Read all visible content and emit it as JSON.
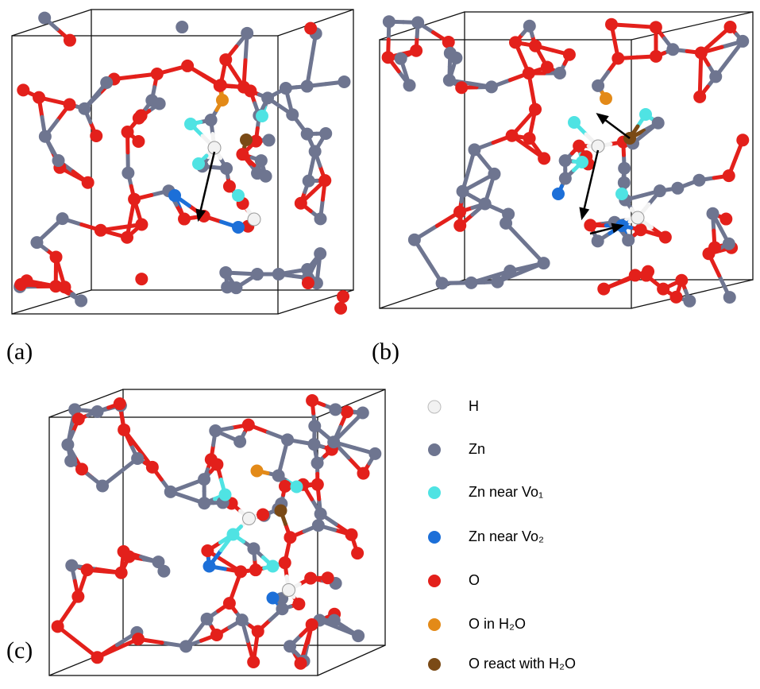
{
  "panels": [
    {
      "label": "(a)"
    },
    {
      "label": "(b)"
    },
    {
      "label": "(c)"
    }
  ],
  "legend": [
    {
      "label": "H",
      "color": "#f2f2f2"
    },
    {
      "label": "Zn",
      "color": "#6e7590"
    },
    {
      "label": "Zn near Vo₁",
      "color": "#4fe3e3"
    },
    {
      "label": "Zn near Vo₂",
      "color": "#1c6fd8"
    },
    {
      "label": "O",
      "color": "#e3201b"
    },
    {
      "label": "O in H₂O",
      "color": "#e38a18"
    },
    {
      "label": "O react with H₂O",
      "color": "#7a4a16"
    }
  ]
}
